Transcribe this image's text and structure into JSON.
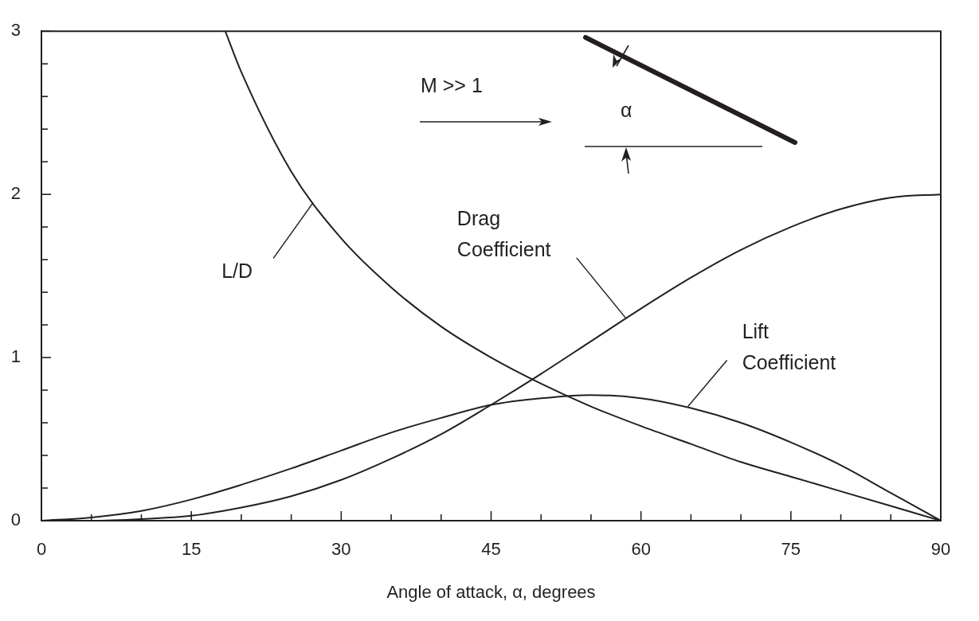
{
  "chart_data": {
    "type": "line",
    "xlabel": "Angle of attack, α, degrees",
    "xlim": [
      0,
      90
    ],
    "xticks": [
      0,
      {
        "value": 5,
        "label": null
      },
      {
        "value": 10,
        "label": null
      },
      15,
      {
        "value": 20,
        "label": null
      },
      {
        "value": 25,
        "label": null
      },
      30,
      {
        "value": 35,
        "label": null
      },
      {
        "value": 40,
        "label": null
      },
      45,
      {
        "value": 50,
        "label": null
      },
      {
        "value": 55,
        "label": null
      },
      60,
      {
        "value": 65,
        "label": null
      },
      {
        "value": 70,
        "label": null
      },
      75,
      {
        "value": 80,
        "label": null
      },
      {
        "value": 85,
        "label": null
      },
      90
    ],
    "ylim": [
      0,
      3
    ],
    "yticks": [
      0,
      {
        "value": 0.2,
        "label": null
      },
      {
        "value": 0.4,
        "label": null
      },
      {
        "value": 0.6,
        "label": null
      },
      {
        "value": 0.8,
        "label": null
      },
      1,
      {
        "value": 1.2,
        "label": null
      },
      {
        "value": 1.4,
        "label": null
      },
      {
        "value": 1.6,
        "label": null
      },
      {
        "value": 1.8,
        "label": null
      },
      2,
      {
        "value": 2.2,
        "label": null
      },
      {
        "value": 2.4,
        "label": null
      },
      {
        "value": 2.6,
        "label": null
      },
      {
        "value": 2.8,
        "label": null
      },
      3
    ],
    "grid": false,
    "legend": false,
    "marker": "none",
    "line_style": "solid",
    "series": [
      {
        "color": "#231f20",
        "x": [
          18.4,
          20,
          25,
          30,
          35,
          40,
          45,
          50,
          55,
          60,
          65,
          70,
          75,
          80,
          85,
          90
        ],
        "values": [
          3,
          2.75,
          2.14,
          1.73,
          1.43,
          1.19,
          1,
          0.84,
          0.7,
          0.58,
          0.47,
          0.36,
          0.27,
          0.18,
          0.09,
          0
        ]
      },
      {
        "color": "#231f20",
        "x": [
          0,
          5,
          10,
          15,
          20,
          25,
          30,
          35,
          40,
          45,
          50,
          55,
          60,
          65,
          70,
          75,
          80,
          85,
          90
        ],
        "values": [
          0,
          0,
          0.01,
          0.03,
          0.08,
          0.15,
          0.25,
          0.38,
          0.53,
          0.71,
          0.9,
          1.1,
          1.3,
          1.49,
          1.66,
          1.8,
          1.91,
          1.98,
          2
        ]
      },
      {
        "color": "#231f20",
        "x": [
          0,
          5,
          10,
          15,
          20,
          25,
          30,
          35,
          40,
          45,
          50,
          55,
          60,
          65,
          70,
          75,
          80,
          85,
          90
        ],
        "values": [
          0,
          0.02,
          0.06,
          0.13,
          0.22,
          0.32,
          0.43,
          0.54,
          0.63,
          0.71,
          0.75,
          0.77,
          0.75,
          0.69,
          0.6,
          0.48,
          0.34,
          0.17,
          0
        ]
      }
    ],
    "annotations": [
      {
        "text": "L/D",
        "x": 27.2,
        "y": 1.95
      },
      {
        "text": "Drag Coefficient",
        "x": 58.5,
        "y": 1.24
      },
      {
        "text": "Lift Coefficient",
        "x": 64.7,
        "y": 0.7
      },
      "M >> 1",
      "α"
    ]
  }
}
